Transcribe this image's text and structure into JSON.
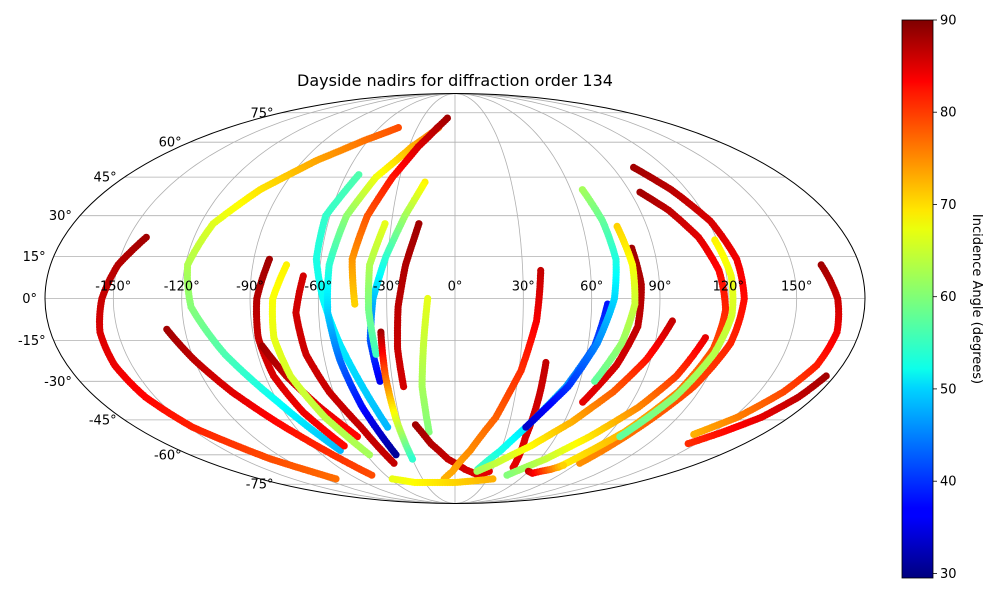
{
  "chart_data": {
    "type": "scatter",
    "projection": "mollweide",
    "title": "Dayside nadirs for diffraction order 134",
    "grid": true,
    "x_ticks": [
      "-150°",
      "-120°",
      "-90°",
      "-60°",
      "-30°",
      "0°",
      "30°",
      "60°",
      "90°",
      "120°",
      "150°"
    ],
    "y_ticks": [
      "75°",
      "60°",
      "45°",
      "30°",
      "15°",
      "0°",
      "-15°",
      "-30°",
      "-45°",
      "-60°",
      "-75°"
    ],
    "lon_ticks": [
      -150,
      -120,
      -90,
      -60,
      -30,
      0,
      30,
      60,
      90,
      120,
      150
    ],
    "lat_ticks": [
      75,
      60,
      45,
      30,
      15,
      0,
      -15,
      -30,
      -45,
      -60,
      -75
    ],
    "colorbar": {
      "label": "Incidence Angle (degrees)",
      "min": 29.5,
      "max": 90,
      "colormap": "jet",
      "ticks": [
        "90",
        "80",
        "70",
        "60",
        "50",
        "40",
        "30"
      ],
      "tick_values": [
        90,
        80,
        70,
        60,
        50,
        40,
        30
      ]
    },
    "tracks": [
      {
        "lon": [
          -142,
          -150,
          -155,
          -158,
          -158,
          -155,
          -148,
          -130,
          -110
        ],
        "lat": [
          22,
          12,
          0,
          -12,
          -24,
          -36,
          -48,
          -62,
          -72
        ],
        "c_start": 88,
        "c_end": 76
      },
      {
        "lon": [
          -128,
          -120,
          -110,
          -98,
          -85,
          -72
        ],
        "lat": [
          -11,
          -22,
          -34,
          -46,
          -58,
          -70
        ],
        "c_start": 88,
        "c_end": 78
      },
      {
        "lon": [
          -45,
          -62,
          -82,
          -101,
          -114,
          -119,
          -116,
          -105,
          -90,
          -75
        ],
        "lat": [
          67,
          61,
          52,
          40,
          27,
          12,
          -3,
          -20,
          -38,
          -58
        ],
        "c_start": 78,
        "c_end": 48
      },
      {
        "lon": [
          -83,
          -87,
          -88,
          -86,
          -80,
          -70
        ],
        "lat": [
          14,
          0,
          -14,
          -28,
          -42,
          -56
        ],
        "c_start": 88,
        "c_end": 82
      },
      {
        "lon": [
          -87,
          -80,
          -70,
          -58
        ],
        "lat": [
          -17,
          -28,
          -40,
          -52
        ],
        "c_start": 88,
        "c_end": 82
      },
      {
        "lon": [
          -75,
          -80,
          -81,
          -78,
          -70,
          -58
        ],
        "lat": [
          12,
          0,
          -14,
          -28,
          -44,
          -60
        ],
        "c_start": 68,
        "c_end": 62
      },
      {
        "lon": [
          -67,
          -70,
          -68,
          -62,
          -53,
          -45
        ],
        "lat": [
          8,
          -5,
          -20,
          -34,
          -48,
          -64
        ],
        "c_start": 85,
        "c_end": 86
      },
      {
        "lon": [
          -53,
          -62,
          -62,
          -58,
          -52,
          -45,
          -38
        ],
        "lat": [
          46,
          30,
          14,
          0,
          -16,
          -32,
          -48
        ],
        "c_start": 57,
        "c_end": 48
      },
      {
        "lon": [
          -13,
          -28,
          -43,
          -52,
          -56,
          -56,
          -53,
          -48,
          -40
        ],
        "lat": [
          67,
          58,
          45,
          30,
          12,
          -5,
          -22,
          -40,
          -60
        ],
        "c_start": 76,
        "c_end": 31
      },
      {
        "lon": [
          -7,
          -14,
          -24,
          -34,
          -42,
          -46,
          -44
        ],
        "lat": [
          72,
          67,
          58,
          45,
          30,
          14,
          -2
        ],
        "c_start": 88,
        "c_end": 70
      },
      {
        "lon": [
          -16,
          -24,
          -31,
          -36,
          -38,
          -36
        ],
        "lat": [
          43,
          30,
          15,
          0,
          -15,
          -30
        ],
        "c_start": 68,
        "c_end": 36
      },
      {
        "lon": [
          -33,
          -38,
          -38,
          -36
        ],
        "lat": [
          27,
          12,
          -4,
          -20
        ],
        "c_start": 66,
        "c_end": 56
      },
      {
        "lon": [
          -33,
          -33,
          -32,
          -30
        ],
        "lat": [
          -12,
          -28,
          -45,
          -62
        ],
        "c_start": 88,
        "c_end": 55
      },
      {
        "lon": [
          -17,
          -22,
          -25,
          -26,
          -25
        ],
        "lat": [
          27,
          12,
          -3,
          -18,
          -32
        ],
        "c_start": 88,
        "c_end": 85
      },
      {
        "lon": [
          -12,
          -14,
          -16,
          -15
        ],
        "lat": [
          0,
          -15,
          -32,
          -50
        ],
        "c_start": 66,
        "c_end": 60
      },
      {
        "lon": [
          -22,
          -15,
          -5,
          8,
          20,
          28
        ],
        "lat": [
          -47,
          -55,
          -62,
          -67,
          -70,
          -68
        ],
        "c_start": 88,
        "c_end": 84
      },
      {
        "lon": [
          38,
          36,
          31,
          22,
          10,
          -2,
          -10
        ],
        "lat": [
          10,
          -8,
          -26,
          -44,
          -58,
          -68,
          -72
        ],
        "c_start": 86,
        "c_end": 72
      },
      {
        "lon": [
          42,
          42,
          42,
          45
        ],
        "lat": [
          -23,
          -38,
          -52,
          -66
        ],
        "c_start": 86,
        "c_end": 84
      },
      {
        "lon": [
          67,
          63,
          54,
          42,
          30,
          18
        ],
        "lat": [
          -2,
          -17,
          -32,
          -46,
          -58,
          -67
        ],
        "c_start": 38,
        "c_end": 56
      },
      {
        "lon": [
          66,
          70,
          72,
          70,
          64,
          55,
          40
        ],
        "lat": [
          40,
          28,
          14,
          0,
          -16,
          -32,
          -48
        ],
        "c_start": 62,
        "c_end": 34
      },
      {
        "lon": [
          80,
          82,
          81,
          75,
          65
        ],
        "lat": [
          18,
          5,
          -10,
          -24,
          -38
        ],
        "c_start": 88,
        "c_end": 84
      },
      {
        "lon": [
          76,
          79,
          79,
          75,
          67
        ],
        "lat": [
          26,
          12,
          -2,
          -16,
          -30
        ],
        "c_start": 70,
        "c_end": 58
      },
      {
        "lon": [
          96,
          88,
          78,
          64,
          48,
          30,
          18
        ],
        "lat": [
          -8,
          -22,
          -34,
          -46,
          -56,
          -64,
          -68
        ],
        "c_start": 86,
        "c_end": 62
      },
      {
        "lon": [
          112,
          105,
          95,
          80,
          64,
          45
        ],
        "lat": [
          -14,
          -28,
          -40,
          -52,
          -62,
          -70
        ],
        "c_start": 84,
        "c_end": 60
      },
      {
        "lon": [
          102,
          112,
          121,
          126,
          127,
          124,
          116,
          104,
          92
        ],
        "lat": [
          49,
          40,
          28,
          14,
          0,
          -16,
          -32,
          -48,
          -64
        ],
        "c_start": 88,
        "c_end": 74
      },
      {
        "lon": [
          95,
          104,
          112,
          117,
          119,
          117,
          110,
          98,
          80
        ],
        "lat": [
          39,
          32,
          22,
          10,
          -4,
          -18,
          -34,
          -50,
          -66
        ],
        "c_start": 88,
        "c_end": 68
      },
      {
        "lon": [
          119,
          122,
          122,
          118,
          110,
          98
        ],
        "lat": [
          21,
          8,
          -6,
          -20,
          -36,
          -52
        ],
        "c_start": 68,
        "c_end": 58
      },
      {
        "lon": [
          163,
          168,
          170,
          168,
          162,
          152,
          140
        ],
        "lat": [
          12,
          0,
          -12,
          -24,
          -34,
          -44,
          -51
        ],
        "c_start": 88,
        "c_end": 72
      },
      {
        "lon": [
          176,
          172,
          165,
          155,
          145
        ],
        "lat": [
          -28,
          -36,
          -44,
          -50,
          -55
        ],
        "c_start": 88,
        "c_end": 80
      },
      {
        "lon": [
          60,
          65,
          70,
          76,
          82
        ],
        "lat": [
          -68,
          -69,
          -68,
          -67,
          -65
        ],
        "c_start": 86,
        "c_end": 70
      },
      {
        "lon": [
          -58,
          -40,
          -20,
          0,
          20,
          35
        ],
        "lat": [
          -72,
          -74,
          -74,
          -74,
          -73,
          -72
        ],
        "c_start": 66,
        "c_end": 72
      }
    ]
  }
}
